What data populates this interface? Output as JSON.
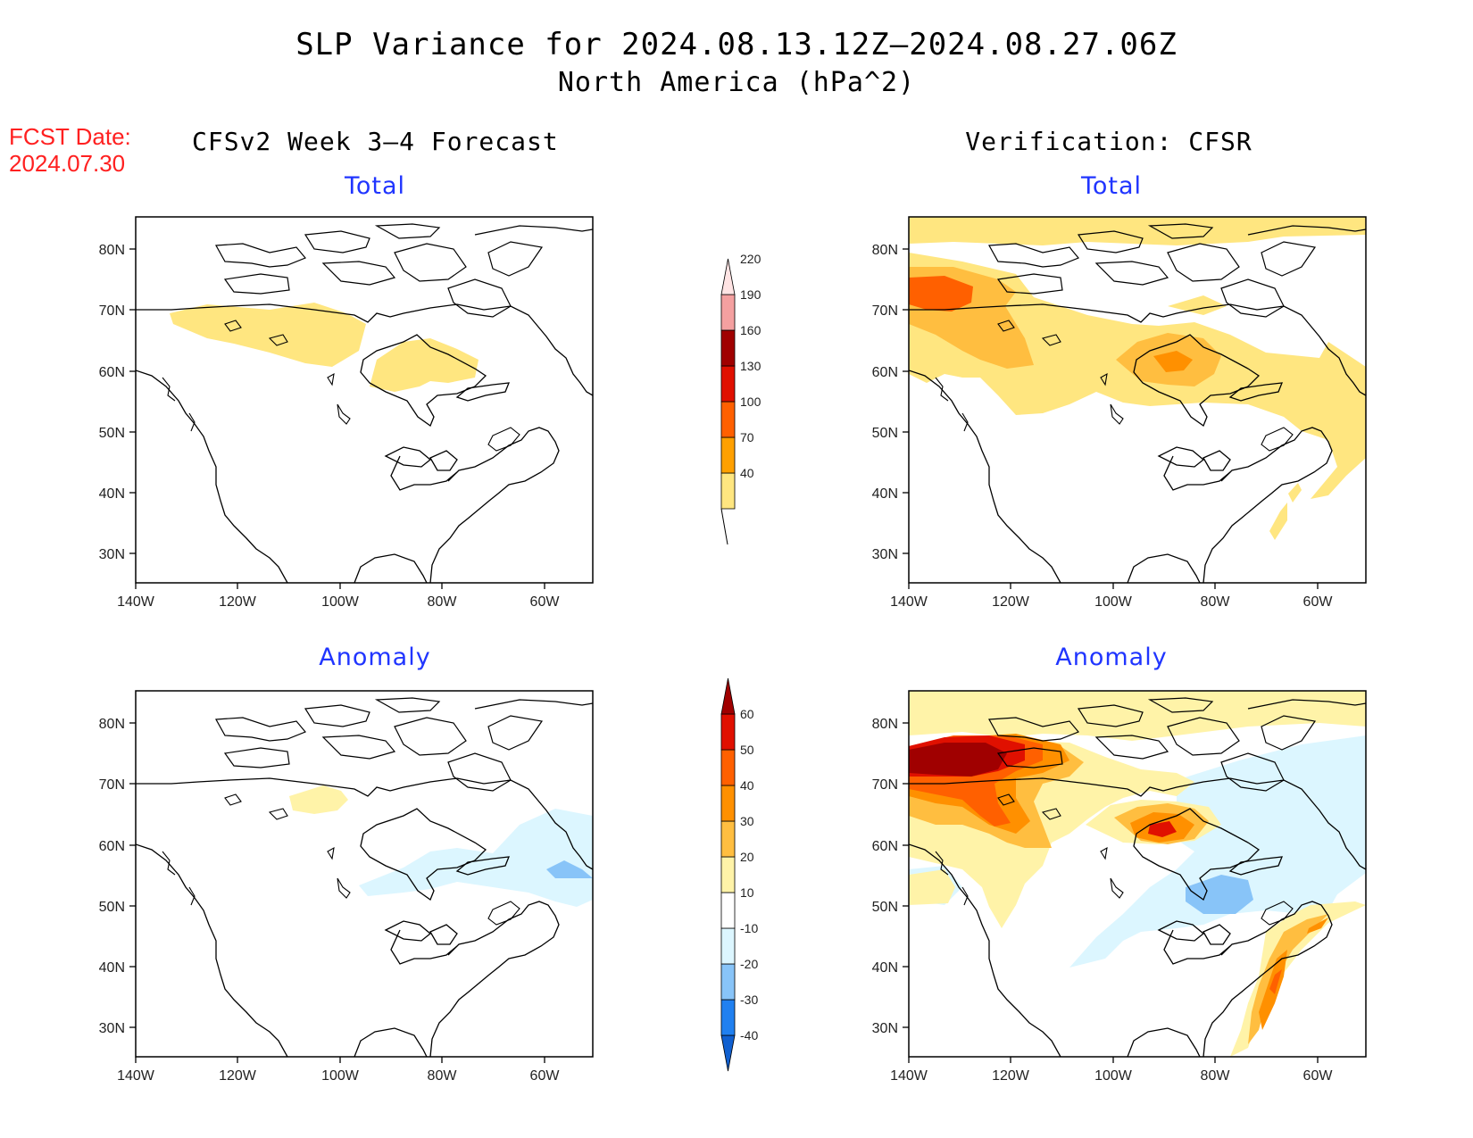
{
  "title": "SLP Variance for 2024.08.13.12Z–2024.08.27.06Z",
  "subtitle": "North America (hPa^2)",
  "fcst": {
    "label": "FCST Date:",
    "date": "2024.07.30"
  },
  "columns": {
    "left": "CFSv2 Week 3–4 Forecast",
    "right": "Verification: CFSR"
  },
  "panels": {
    "top": "Total",
    "bottom": "Anomaly"
  },
  "axes": {
    "lon_ticks": [
      "140W",
      "120W",
      "100W",
      "80W",
      "60W"
    ],
    "lat_ticks": [
      "80N",
      "70N",
      "60N",
      "50N",
      "40N",
      "30N"
    ]
  },
  "colorbar_total": {
    "labels": [
      "40",
      "70",
      "100",
      "130",
      "160",
      "190",
      "220"
    ],
    "colors": [
      "#ffe680",
      "#ffa000",
      "#ff6000",
      "#e01000",
      "#a00000",
      "#f4a0a0",
      "#ffe4e4"
    ]
  },
  "colorbar_anomaly": {
    "labels": [
      "-40",
      "-30",
      "-20",
      "-10",
      "10",
      "20",
      "30",
      "40",
      "50",
      "60"
    ],
    "colors": [
      "#1060d0",
      "#2080f0",
      "#88c4f8",
      "#dcf6ff",
      "#ffffff",
      "#fff3a8",
      "#ffbe40",
      "#ff9000",
      "#ff6000",
      "#e01000",
      "#a00000"
    ]
  },
  "shade_colors": {
    "lightyellow": "#fff3a8",
    "yellow": "#ffe680",
    "lightorange": "#ffbe40",
    "orange": "#ff9000",
    "darkorange": "#ff6000",
    "red": "#e01000",
    "darkred": "#a00000",
    "lightblue": "#dcf6ff",
    "blue": "#88c4f8"
  }
}
